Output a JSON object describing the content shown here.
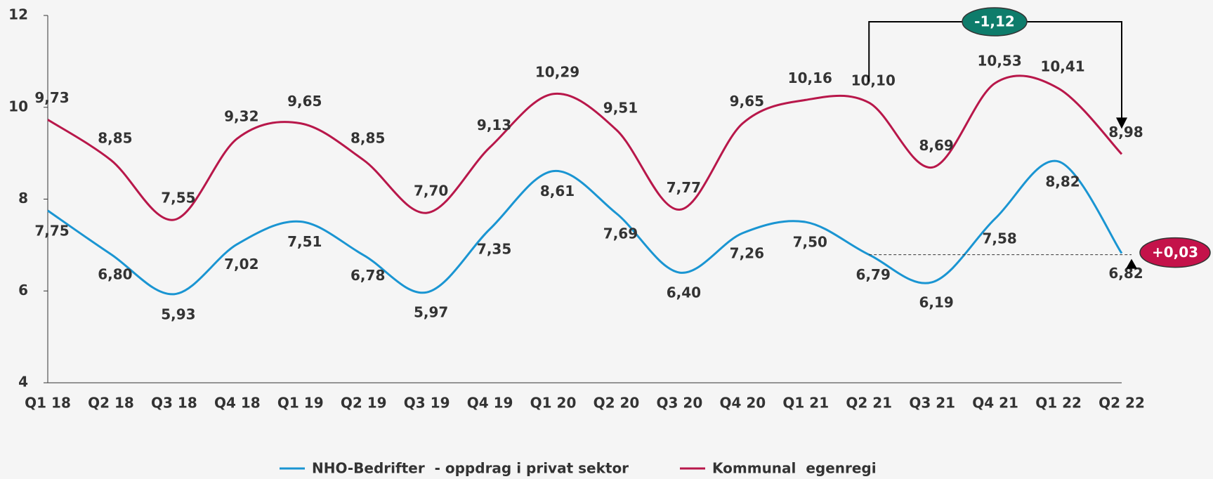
{
  "chart_data": {
    "type": "line",
    "categories": [
      "Q1 18",
      "Q2 18",
      "Q3 18",
      "Q4 18",
      "Q1 19",
      "Q2 19",
      "Q3 19",
      "Q4 19",
      "Q1 20",
      "Q2 20",
      "Q3 20",
      "Q4 20",
      "Q1 21",
      "Q2 21",
      "Q3 21",
      "Q4 21",
      "Q1 22",
      "Q2 22"
    ],
    "series": [
      {
        "name": "NHO-Bedrifter  - oppdrag i privat sektor",
        "color": "#1a95d2",
        "values": [
          7.75,
          6.8,
          5.93,
          7.02,
          7.51,
          6.78,
          5.97,
          7.35,
          8.61,
          7.69,
          6.4,
          7.26,
          7.5,
          6.79,
          6.19,
          7.58,
          8.82,
          6.82
        ],
        "value_labels": [
          "7,75",
          "6,80",
          "5,93",
          "7,02",
          "7,51",
          "6,78",
          "5,97",
          "7,35",
          "8,61",
          "7,69",
          "6,40",
          "7,26",
          "7,50",
          "6,79",
          "6,19",
          "7,58",
          "8,82",
          "6,82"
        ]
      },
      {
        "name": "Kommunal  egenregi",
        "color": "#b8174a",
        "values": [
          9.73,
          8.85,
          7.55,
          9.32,
          9.65,
          8.85,
          7.7,
          9.13,
          10.29,
          9.51,
          7.77,
          9.65,
          10.16,
          10.1,
          8.69,
          10.53,
          10.41,
          8.98
        ],
        "value_labels": [
          "9,73",
          "8,85",
          "7,55",
          "9,32",
          "9,65",
          "8,85",
          "7,70",
          "9,13",
          "10,29",
          "9,51",
          "7,77",
          "9,65",
          "10,16",
          "10,10",
          "8,69",
          "10,53",
          "10,41",
          "8,98"
        ]
      }
    ],
    "ylim": [
      4,
      12
    ],
    "yticks": [
      4,
      6,
      8,
      10,
      12
    ],
    "grid": false,
    "annotations": [
      "-1,12",
      "+0,03"
    ]
  }
}
